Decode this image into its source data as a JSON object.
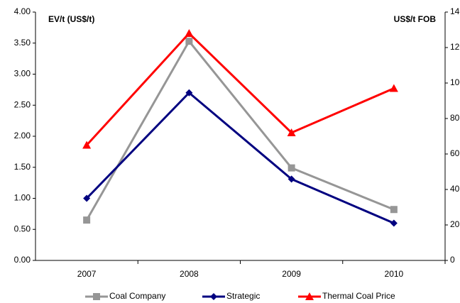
{
  "chart_data": {
    "type": "line",
    "y_label": "EV/t (US$/t)",
    "y2_label": "US$/t FOB",
    "categories": [
      "2007",
      "2008",
      "2009",
      "2010"
    ],
    "ylim": [
      0,
      4
    ],
    "yticks": [
      {
        "value": 0,
        "label": "0.00"
      },
      {
        "value": 0.5,
        "label": "0.50"
      },
      {
        "value": 1,
        "label": "1.00"
      },
      {
        "value": 1.5,
        "label": "1.50"
      },
      {
        "value": 2,
        "label": "2.00"
      },
      {
        "value": 2.5,
        "label": "2.50"
      },
      {
        "value": 3,
        "label": "3.00"
      },
      {
        "value": 3.5,
        "label": "3.50"
      },
      {
        "value": 4,
        "label": "4.00"
      }
    ],
    "y2lim": [
      0,
      140
    ],
    "y2ticks": [
      0,
      20,
      40,
      60,
      80,
      100,
      120,
      140
    ],
    "grid": false,
    "legend": "bottom",
    "series": [
      {
        "name": "Coal Company",
        "color": "#969696",
        "marker": "square",
        "values": [
          0.65,
          3.53,
          1.49,
          0.82
        ]
      },
      {
        "name": "Strategic",
        "color": "#000080",
        "marker": "diamond",
        "values": [
          1.0,
          2.7,
          1.31,
          0.6
        ]
      },
      {
        "name": "Thermal Coal Price",
        "color": "#ff0000",
        "marker": "triangle",
        "axis": "y2",
        "values": [
          65,
          128,
          72,
          97
        ]
      }
    ]
  }
}
